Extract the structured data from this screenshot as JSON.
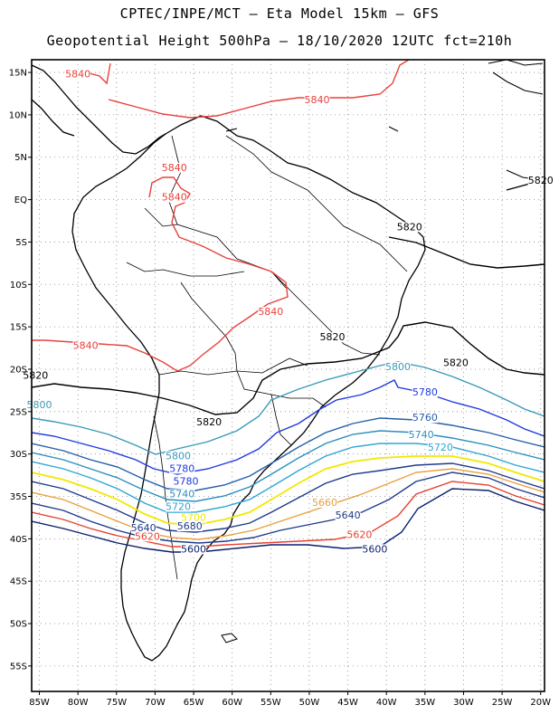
{
  "header": {
    "line1": "CPTEC/INPE/MCT –  Eta Model 15km – GFS",
    "line2": "Geopotential Height 500hPa – 18/10/2020 12UTC fct=210h"
  },
  "axes": {
    "lat_labels": [
      "15N",
      "10N",
      "5N",
      "EQ",
      "5S",
      "10S",
      "15S",
      "20S",
      "25S",
      "30S",
      "35S",
      "40S",
      "45S",
      "50S",
      "55S"
    ],
    "lon_labels": [
      "85W",
      "80W",
      "75W",
      "70W",
      "65W",
      "60W",
      "55W",
      "50W",
      "45W",
      "40W",
      "35W",
      "30W",
      "25W",
      "20W"
    ],
    "lat_range": [
      16.5,
      -58
    ],
    "lon_range": [
      -86,
      -19.5
    ],
    "grid": "dotted"
  },
  "colors": {
    "c5600": "#0a1f6e",
    "c5620": "#e8412f",
    "c5640": "#1f3a8a",
    "c5660": "#e8a03c",
    "c5700": "#f2e800",
    "c5720": "#2fa5d6",
    "c5740": "#2a8fbf",
    "c5760": "#245fa8",
    "c5780": "#1e3ae0",
    "c5800": "#3a9ab8",
    "c5820": "#000000",
    "c5840": "#e8413c",
    "coast": "#000000"
  },
  "contours": [
    {
      "value": "5840",
      "color": "#e8413c",
      "labels": [
        {
          "text": "5840",
          "lon": -80,
          "lat": 14.5
        },
        {
          "text": "5840",
          "lon": -49,
          "lat": 11.5
        },
        {
          "text": "5840",
          "lon": -67.5,
          "lat": 3.5
        },
        {
          "text": "5840",
          "lon": -67.5,
          "lat": 0
        },
        {
          "text": "5840",
          "lon": -55,
          "lat": -13.5
        },
        {
          "text": "5840",
          "lon": -79,
          "lat": -17.5
        }
      ]
    },
    {
      "value": "5820",
      "color": "#000000",
      "labels": [
        {
          "text": "5820",
          "lon": -85.5,
          "lat": -21
        },
        {
          "text": "5820",
          "lon": -63,
          "lat": -26.5
        },
        {
          "text": "5820",
          "lon": -47,
          "lat": -16.5
        },
        {
          "text": "5820",
          "lon": -37,
          "lat": -3.5
        },
        {
          "text": "5820",
          "lon": -31,
          "lat": -19.5
        },
        {
          "text": "5820",
          "lon": -20,
          "lat": 2
        }
      ]
    },
    {
      "value": "5800",
      "color": "#3a9ab8",
      "labels": [
        {
          "text": "5800",
          "lon": -85,
          "lat": -24.5
        },
        {
          "text": "5800",
          "lon": -67,
          "lat": -30.5
        },
        {
          "text": "5800",
          "lon": -38.5,
          "lat": -20
        }
      ]
    },
    {
      "value": "5780",
      "color": "#1e3ae0",
      "labels": [
        {
          "text": "5780",
          "lon": -66.5,
          "lat": -32
        },
        {
          "text": "5780",
          "lon": -66,
          "lat": -33.5
        },
        {
          "text": "5780",
          "lon": -35,
          "lat": -23
        }
      ]
    },
    {
      "value": "5760",
      "color": "#245fa8",
      "labels": [
        {
          "text": "5760",
          "lon": -35,
          "lat": -26
        }
      ]
    },
    {
      "value": "5740",
      "color": "#2a8fbf",
      "labels": [
        {
          "text": "5740",
          "lon": -66.5,
          "lat": -35
        },
        {
          "text": "5740",
          "lon": -35.5,
          "lat": -28
        }
      ]
    },
    {
      "value": "5720",
      "color": "#2fa5d6",
      "labels": [
        {
          "text": "5720",
          "lon": -67,
          "lat": -36.5
        },
        {
          "text": "5720",
          "lon": -33,
          "lat": -29.5
        }
      ]
    },
    {
      "value": "5700",
      "color": "#f2e800",
      "labels": [
        {
          "text": "5700",
          "lon": -65,
          "lat": -37.8
        }
      ]
    },
    {
      "value": "5660",
      "color": "#e8a03c",
      "labels": [
        {
          "text": "5660",
          "lon": -48,
          "lat": -36
        }
      ]
    },
    {
      "value": "5680",
      "color": "#1f3a8a",
      "labels": [
        {
          "text": "5680",
          "lon": -65.5,
          "lat": -38.8
        }
      ]
    },
    {
      "value": "5640",
      "color": "#1f3a8a",
      "labels": [
        {
          "text": "5640",
          "lon": -71.5,
          "lat": -39
        }
      ]
    },
    {
      "value": "5640b",
      "color": "#1f3a8a",
      "labels": [
        {
          "text": "5640",
          "lon": -45,
          "lat": -37.5
        }
      ]
    },
    {
      "value": "5620",
      "color": "#e8412f",
      "labels": [
        {
          "text": "5620",
          "lon": -71,
          "lat": -40
        }
      ]
    },
    {
      "value": "5620b",
      "color": "#e8412f",
      "labels": [
        {
          "text": "5620",
          "lon": -43.5,
          "lat": -39.8
        }
      ]
    },
    {
      "value": "5600",
      "color": "#0a1f6e",
      "labels": [
        {
          "text": "5600",
          "lon": -65,
          "lat": -41.5
        },
        {
          "text": "5600",
          "lon": -41.5,
          "lat": -41.5
        }
      ]
    }
  ]
}
